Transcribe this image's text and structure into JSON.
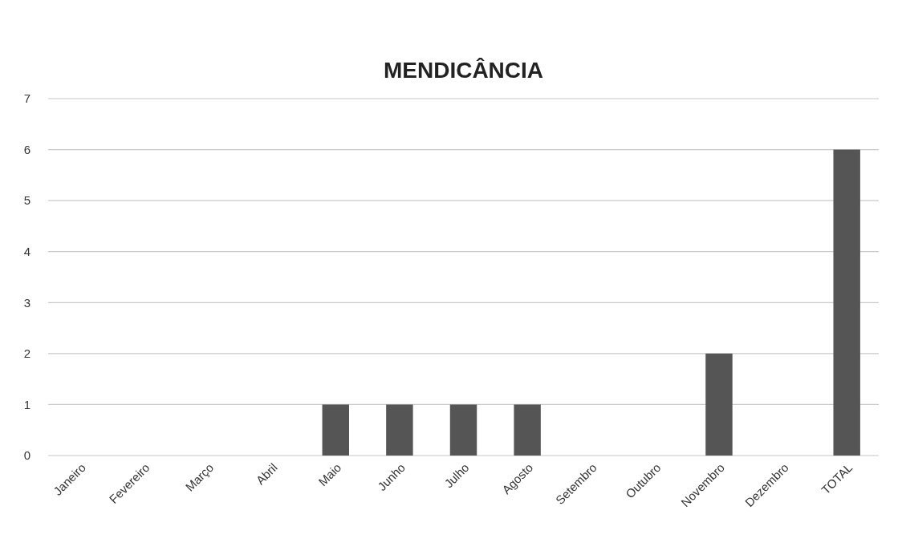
{
  "chart_data": {
    "type": "bar",
    "title": "MENDICÂNCIA",
    "categories": [
      "Janeiro",
      "Fevereiro",
      "Março",
      "Abril",
      "Maio",
      "Junho",
      "Julho",
      "Agosto",
      "Setembro",
      "Outubro",
      "Novembro",
      "Dezembro",
      "TOTAL"
    ],
    "values": [
      0,
      0,
      0,
      0,
      1,
      1,
      1,
      1,
      0,
      0,
      2,
      0,
      6
    ],
    "color": "#555555",
    "ylim": [
      0,
      7
    ],
    "yticks": [
      0,
      1,
      2,
      3,
      4,
      5,
      6,
      7
    ],
    "grid": "y"
  }
}
